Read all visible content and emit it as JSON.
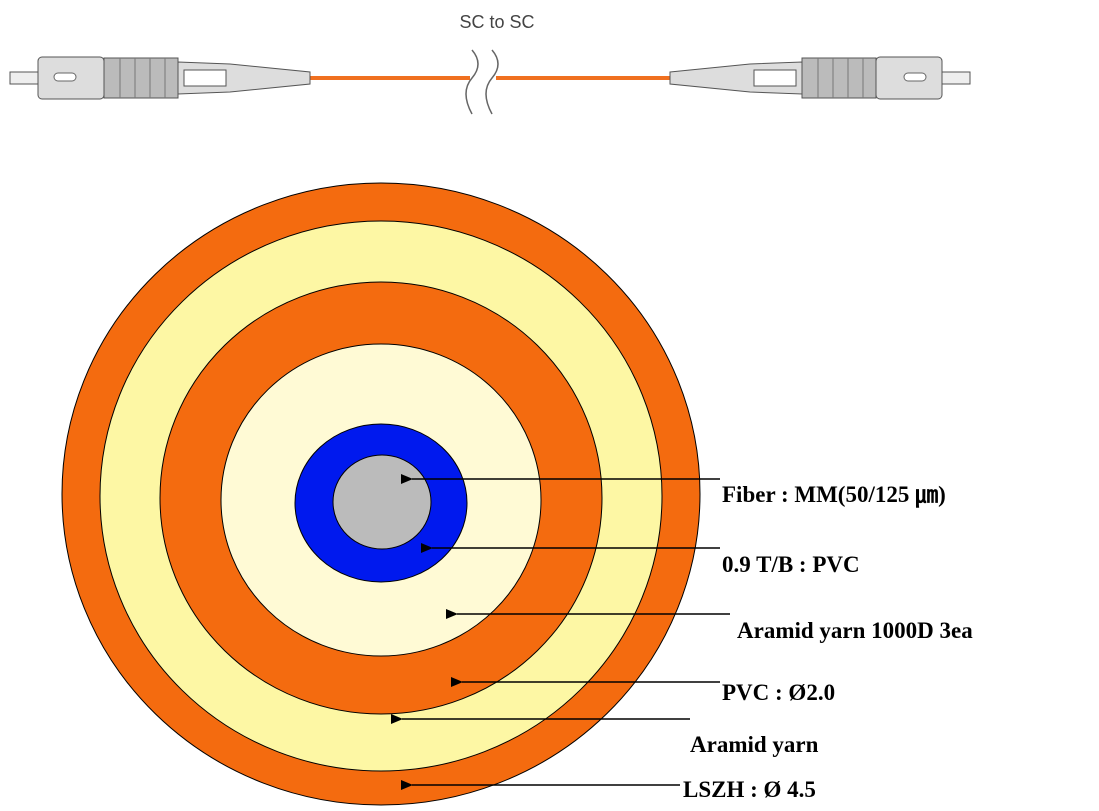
{
  "cable": {
    "title": "SC to SC"
  },
  "layers": [
    {
      "label": "Fiber : MM(50/125 ㎛)"
    },
    {
      "label": "0.9 T/B : PVC"
    },
    {
      "label": "Aramid yarn 1000D 3ea"
    },
    {
      "label": "PVC : Ø2.0"
    },
    {
      "label": "Aramid yarn"
    },
    {
      "label": "LSZH : Ø 4.5"
    }
  ]
}
